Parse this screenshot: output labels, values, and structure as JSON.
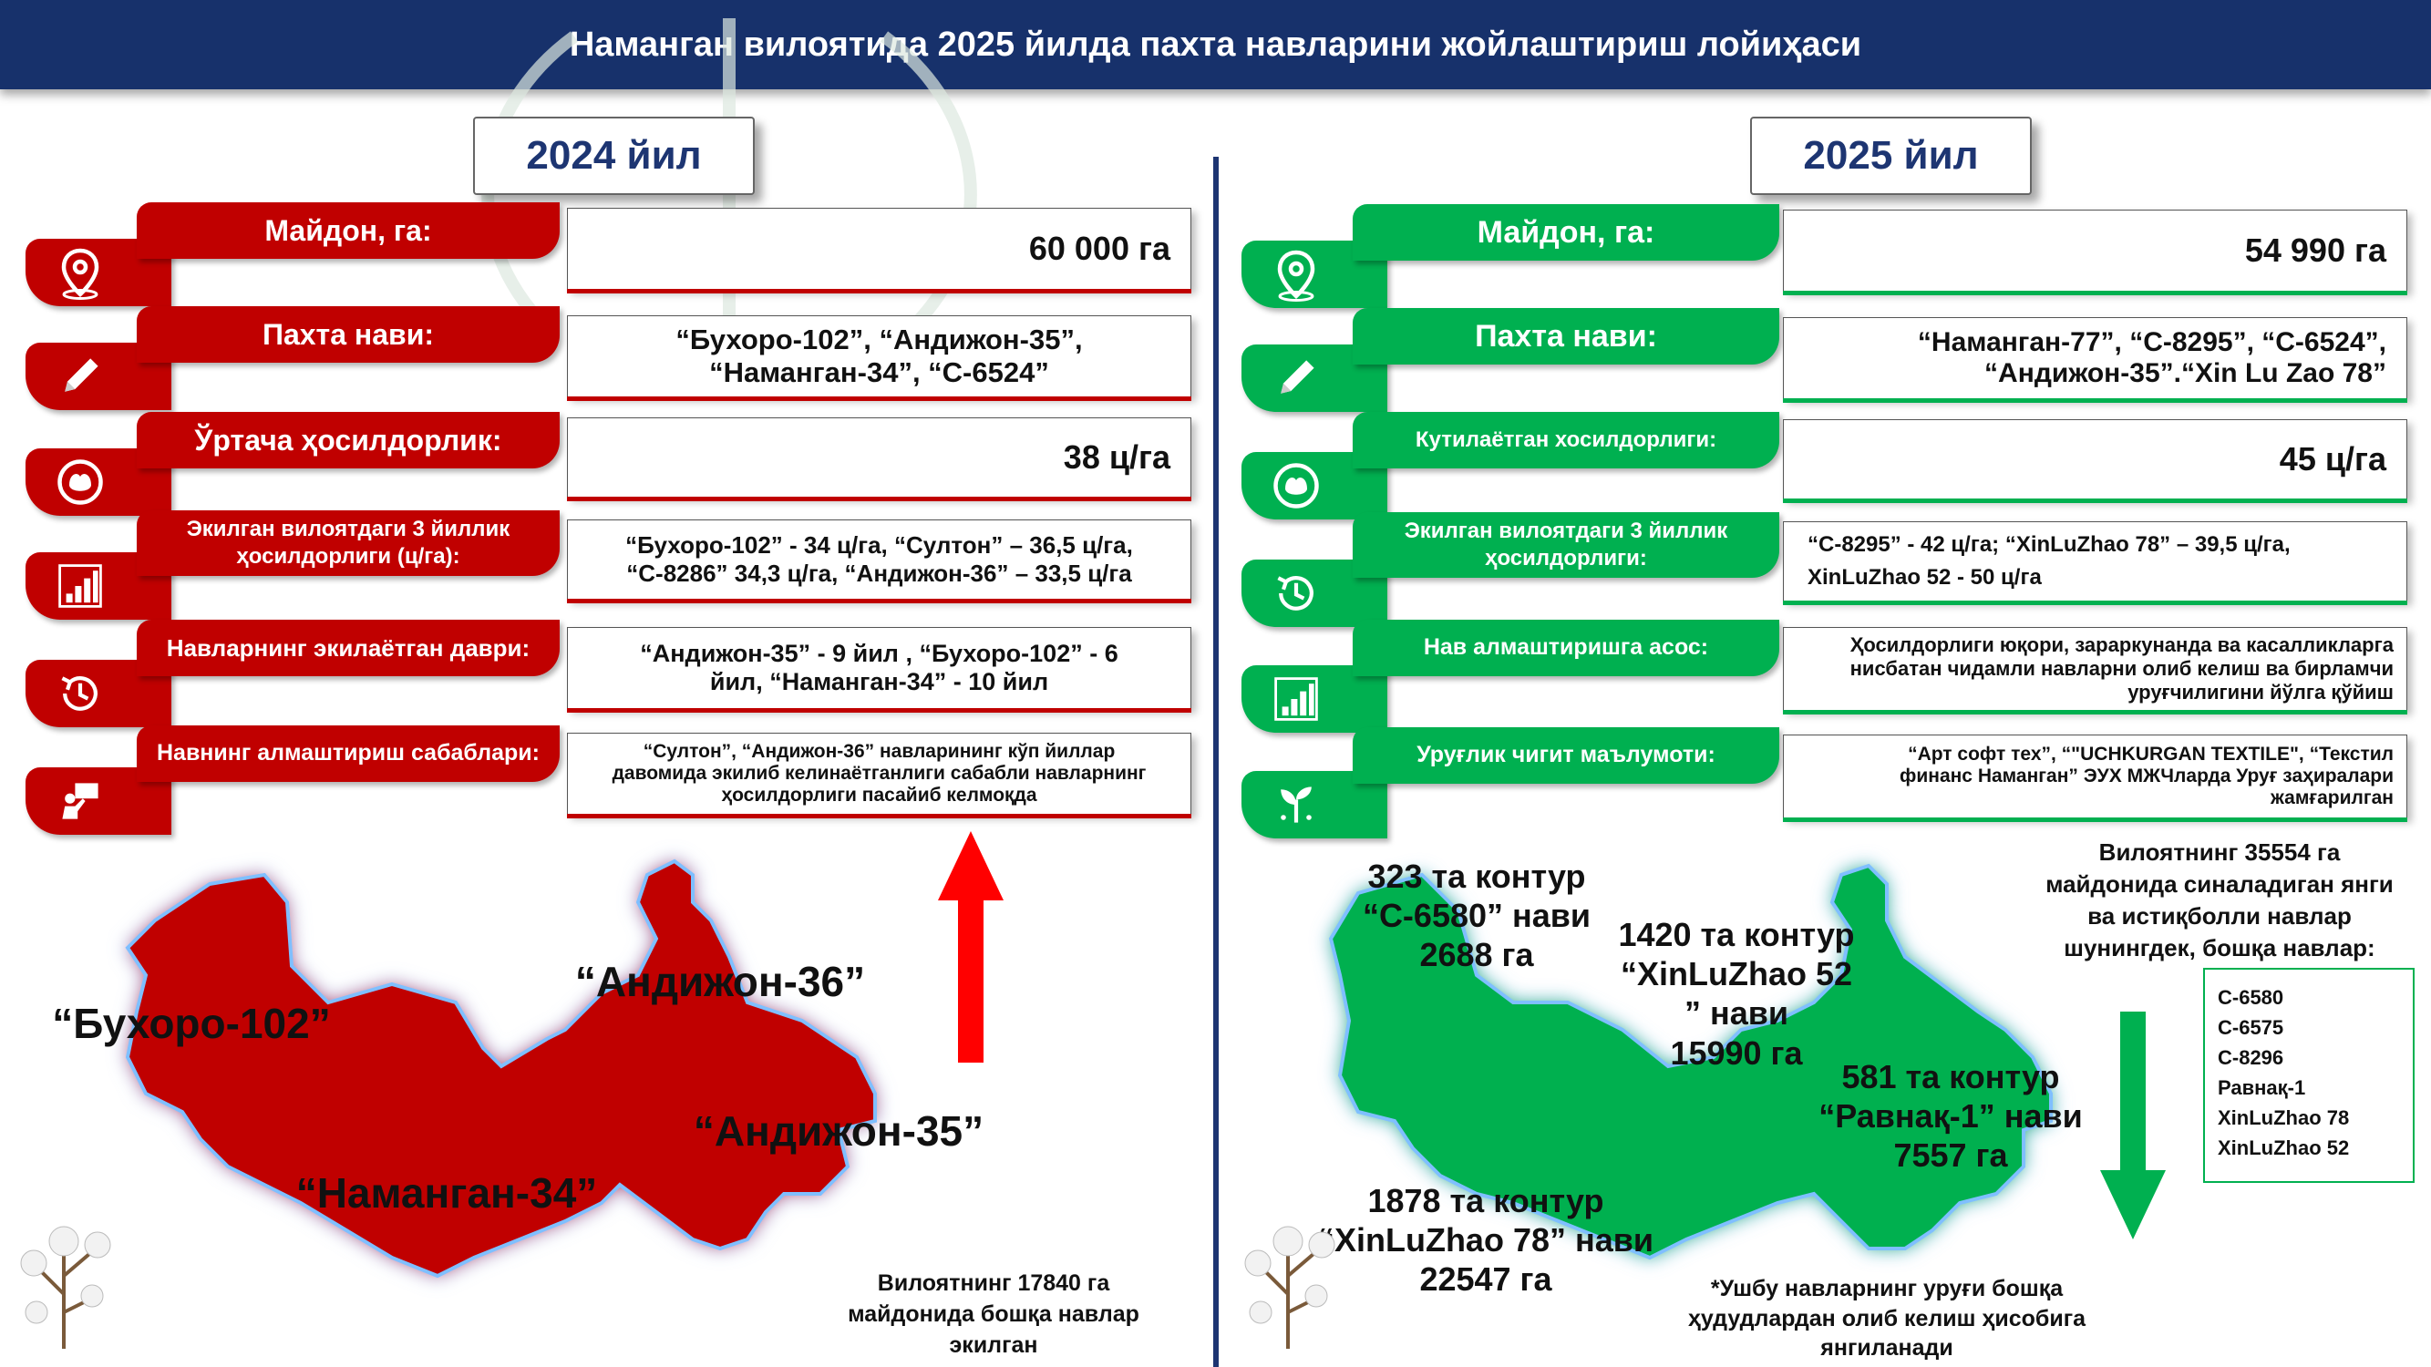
{
  "title": "Наманган вилоятида 2025 йилда пахта навларини жойлаштириш лойиҳаси",
  "colors": {
    "header": "#17316b",
    "left_accent": "#c00000",
    "right_accent": "#00b050",
    "year_text": "#1d3572"
  },
  "left": {
    "year": "2024 йил",
    "rows": [
      {
        "label": "Майдон, га:",
        "value": "60 000 га",
        "icon": "location-pin-icon"
      },
      {
        "label": "Пахта нави:",
        "value": "“Бухоро-102”, “Андижон-35”,\n“Наманган-34”, “С-6524”",
        "icon": "pencil-icon"
      },
      {
        "label": "Ўртача ҳосилдорлик:",
        "value": "38 ц/га",
        "icon": "cotton-boll-icon"
      },
      {
        "label": "Экилган вилоятдаги 3 йиллик\nҳосилдорлиги (ц/га):",
        "value": "“Бухоро-102” - 34 ц/га, “Султон” – 36,5 ц/га,\n“С-8286” 34,3 ц/га, “Андижон-36” – 33,5 ц/га",
        "icon": "bar-chart-icon"
      },
      {
        "label": "Навларнинг экилаётган даври:",
        "value": "“Андижон-35” - 9 йил , “Бухоро-102” - 6\nйил, “Наманган-34” - 10 йил",
        "icon": "history-clock-icon"
      },
      {
        "label": "Навнинг алмаштириш сабаблари:",
        "value": "“Султон”, “Андижон-36” навларининг кўп йиллар\nдавомида экилиб келинаётганлиги сабабли навларнинг\nҳосилдорлиги пасайиб келмоқда",
        "icon": "presenter-icon"
      }
    ],
    "map_labels": [
      "“Бухоро-102”",
      "“Андижон-36”",
      "“Андижон-35”",
      "“Наманган-34”"
    ],
    "note": "Вилоятнинг 17840 га\nмайдонида бошқа навлар\nэкилган"
  },
  "right": {
    "year": "2025 йил",
    "rows": [
      {
        "label": "Майдон, га:",
        "value": "54 990 га",
        "icon": "location-pin-icon"
      },
      {
        "label": "Пахта нави:",
        "value": "“Наманган-77”, “С-8295”, “С-6524”,\n“Андижон-35”.“Xin Lu Zao 78”",
        "icon": "pencil-icon"
      },
      {
        "label": "Кутилаётган хосилдорлиги:",
        "value": "45 ц/га",
        "icon": "cotton-boll-icon"
      },
      {
        "label": "Экилган вилоятдаги 3 йиллик\nҳосилдорлиги:",
        "value": "“С-8295” - 42 ц/га; “XinLuZhao 78” – 39,5 ц/га,\nXinLuZhao 52 - 50 ц/га",
        "icon": "history-clock-icon"
      },
      {
        "label": "Нав алмаштиришга асос:",
        "value": "Ҳосилдорлиги юқори,  зараркунанда ва касалликларга\nнисбатан чидамли навларни олиб келиш ва бирламчи\nуруғчилигини йўлга қўйиш",
        "icon": "bar-chart-icon"
      },
      {
        "label": "Уруғлик чигит маълумоти:",
        "value": "“Арт софт тех”, “\"UCHKURGAN TEXTILE\", “Текстил\nфинанс Наманган” ЭУХ МЖЧларда Уруғ заҳиралари\nжамғарилган",
        "icon": "sprout-icon"
      }
    ],
    "map_labels": [
      "323 та контур\n“С-6580” нави\n2688 га",
      "1420 та контур\n“XinLuZhao 52\n” нави\n15990 га",
      "581 та контур\n“Равнақ-1” нави\n7557 га",
      "1878 та контур\n“XinLuZhao 78” нави\n22547 га"
    ],
    "note_top": "Вилоятнинг 35554 га\nмайдонида синаладиган янги\nва истиқболли навлар\nшунингдек, бошқа навлар:",
    "other_varieties": [
      "С-6580",
      "С-6575",
      "С-8296",
      "Равнақ-1",
      "XinLuZhao 78",
      "XinLuZhao 52"
    ],
    "note_bottom": "*Ушбу навларнинг уруғи бошқа\nҳудудлардан олиб келиш ҳисобига\nянгиланади"
  }
}
